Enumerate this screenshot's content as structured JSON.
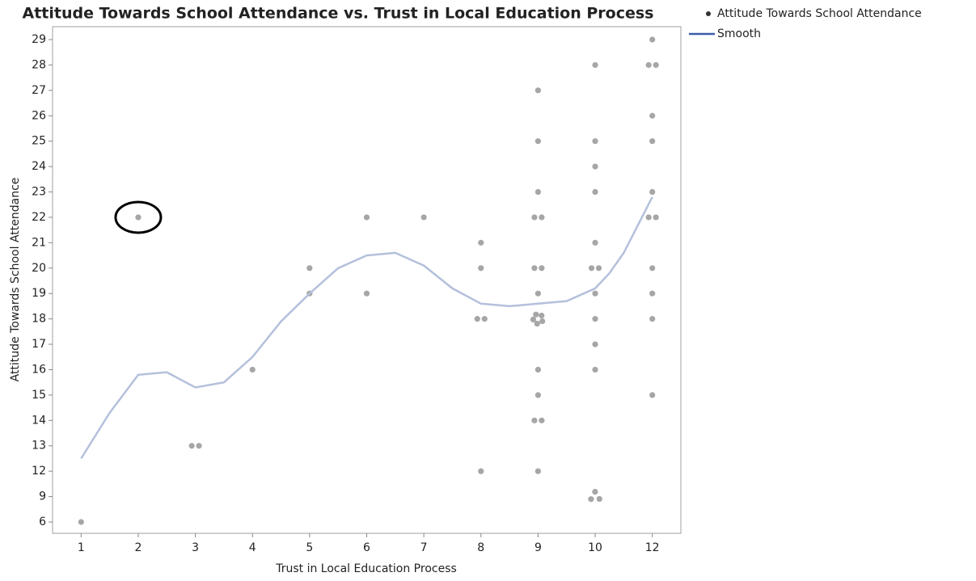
{
  "chart_data": {
    "type": "scatter",
    "title": "Attitude Towards School Attendance vs. Trust in Local Education Process",
    "x_label": "Trust in Local Education Process",
    "y_label": "Attitude Towards School Attendance",
    "xticks": [
      1,
      2,
      3,
      4,
      5,
      6,
      7,
      8,
      9,
      10,
      12
    ],
    "yticks": [
      6,
      9,
      12,
      13,
      14,
      15,
      16,
      17,
      18,
      19,
      20,
      21,
      22,
      23,
      24,
      25,
      26,
      27,
      28,
      29
    ],
    "series": [
      {
        "name": "Attitude Towards School Attendance",
        "type": "scatter",
        "color": "#a6a6a6",
        "x": [
          1,
          2,
          3,
          3,
          4,
          5,
          5,
          6,
          6,
          7,
          8,
          8,
          8,
          8,
          8,
          9,
          9,
          9,
          9,
          9,
          9,
          9,
          9,
          9,
          9,
          9,
          9,
          9,
          9,
          9,
          9,
          9,
          9,
          10,
          10,
          10,
          10,
          10,
          10,
          10,
          10,
          10,
          10,
          10,
          10,
          10,
          10,
          12,
          12,
          12,
          12,
          12,
          12,
          12,
          12,
          12,
          12,
          12,
          12
        ],
        "y": [
          6,
          22,
          13,
          13,
          16,
          20,
          19,
          22,
          19,
          22,
          21,
          20,
          18,
          18,
          12,
          27,
          25,
          23,
          22,
          22,
          20,
          20,
          19,
          18,
          18,
          18,
          18,
          18,
          16,
          15,
          14,
          14,
          12,
          28,
          25,
          24,
          23,
          21,
          20,
          20,
          19,
          18,
          17,
          16,
          9,
          9,
          9,
          29,
          28,
          28,
          26,
          25,
          23,
          22,
          22,
          20,
          19,
          18,
          15
        ]
      },
      {
        "name": "Smooth",
        "type": "line",
        "color": "#b4c0dc",
        "x": [
          1,
          1.5,
          2,
          2.5,
          3,
          3.5,
          4,
          4.5,
          5,
          5.5,
          6,
          6.5,
          7,
          7.5,
          8,
          8.5,
          9,
          9.5,
          10,
          10.5,
          11,
          11.5,
          12
        ],
        "y": [
          12.5,
          14.3,
          15.8,
          15.9,
          15.3,
          15.5,
          16.5,
          17.9,
          19,
          20,
          20.5,
          20.6,
          20.1,
          19.2,
          18.6,
          18.5,
          18.6,
          18.7,
          19.2,
          19.8,
          20.6,
          21.7,
          22.8
        ]
      }
    ]
  }
}
